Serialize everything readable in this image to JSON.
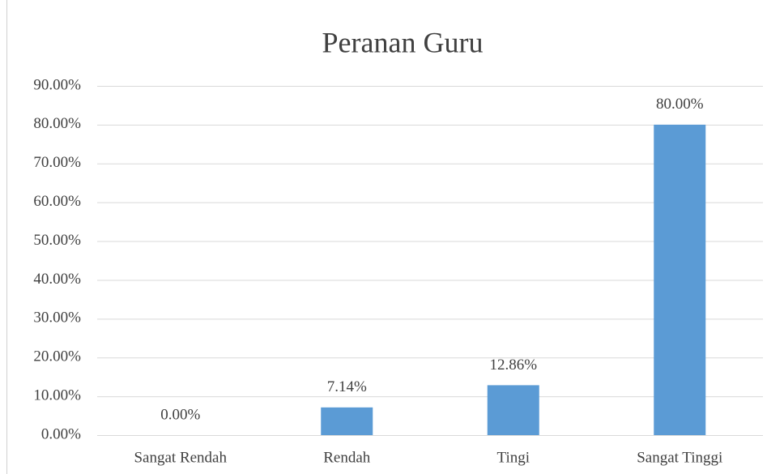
{
  "chart_data": {
    "type": "bar",
    "title": "Peranan Guru",
    "categories": [
      "Sangat Rendah",
      "Rendah",
      "Tingi",
      "Sangat Tinggi"
    ],
    "values": [
      0,
      7.14,
      12.86,
      80
    ],
    "value_labels": [
      "0.00%",
      "7.14%",
      "12.86%",
      "80.00%"
    ],
    "color": "#5b9bd5",
    "ylim": [
      0,
      90
    ],
    "yticks": [
      {
        "value": 0,
        "label": "0.00%"
      },
      {
        "value": 10,
        "label": "10.00%"
      },
      {
        "value": 20,
        "label": "20.00%"
      },
      {
        "value": 30,
        "label": "30.00%"
      },
      {
        "value": 40,
        "label": "40.00%"
      },
      {
        "value": 50,
        "label": "50.00%"
      },
      {
        "value": 60,
        "label": "60.00%"
      },
      {
        "value": 70,
        "label": "70.00%"
      },
      {
        "value": 80,
        "label": "80.00%"
      },
      {
        "value": 90,
        "label": "90.00%"
      }
    ],
    "grid": true
  }
}
